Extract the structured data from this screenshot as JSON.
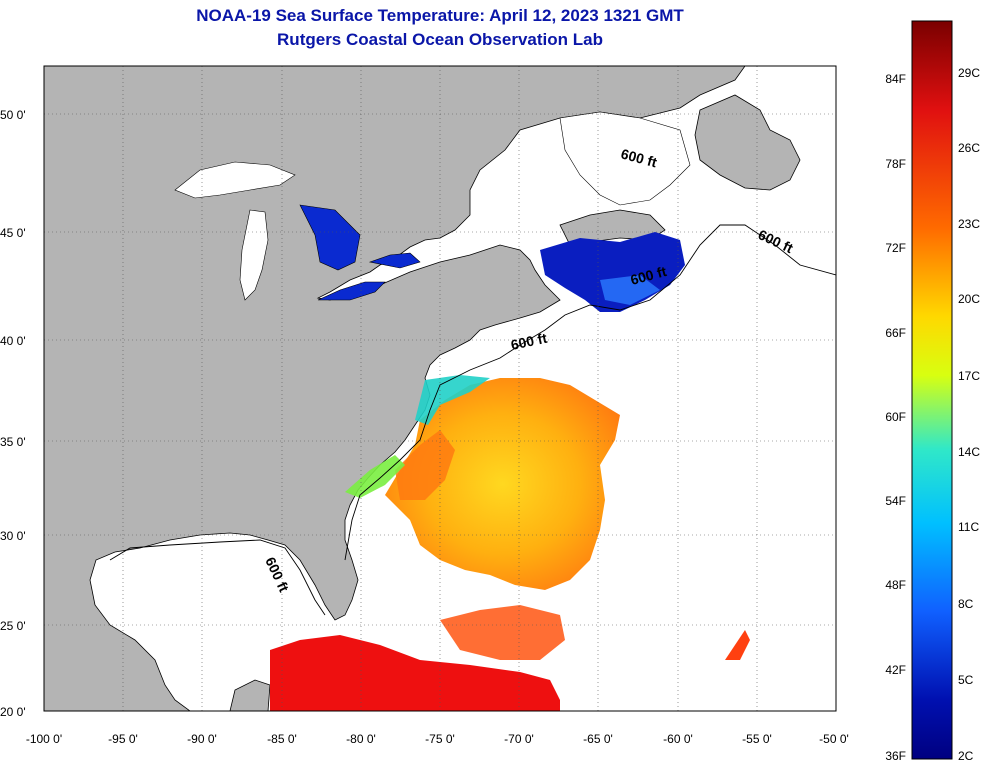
{
  "title": {
    "line1": "NOAA-19 Sea Surface Temperature:  April 12, 2023 1321 GMT",
    "line2": "Rutgers Coastal Ocean Observation Lab"
  },
  "map": {
    "lon_range": [
      -100,
      -50
    ],
    "lat_range": [
      20,
      52
    ],
    "lon_ticks": [
      "-100 0'",
      "-95 0'",
      "-90 0'",
      "-85 0'",
      "-80 0'",
      "-75 0'",
      "-70 0'",
      "-65 0'",
      "-60 0'",
      "-55 0'",
      "-50 0'"
    ],
    "lat_ticks": [
      "50 0'",
      "45 0'",
      "40 0'",
      "35 0'",
      "30 0'",
      "25 0'",
      "20 0'"
    ],
    "grid": "dotted",
    "land_color": "#b4b4b4",
    "contour_labels": [
      "600 ft",
      "600 ft",
      "600 ft",
      "600 ft",
      "600 ft"
    ]
  },
  "colorbar": {
    "fahrenheit_labels": [
      "84F",
      "78F",
      "72F",
      "66F",
      "60F",
      "54F",
      "48F",
      "42F",
      "36F"
    ],
    "celsius_labels": [
      "29C",
      "26C",
      "23C",
      "20C",
      "17C",
      "14C",
      "11C",
      "8C",
      "5C",
      "2C"
    ],
    "colors": [
      "#7a0000",
      "#e01010",
      "#ff6a00",
      "#ffd800",
      "#d8ff10",
      "#30e8c8",
      "#00c0ff",
      "#1060ff",
      "#0010b0",
      "#000080"
    ]
  }
}
